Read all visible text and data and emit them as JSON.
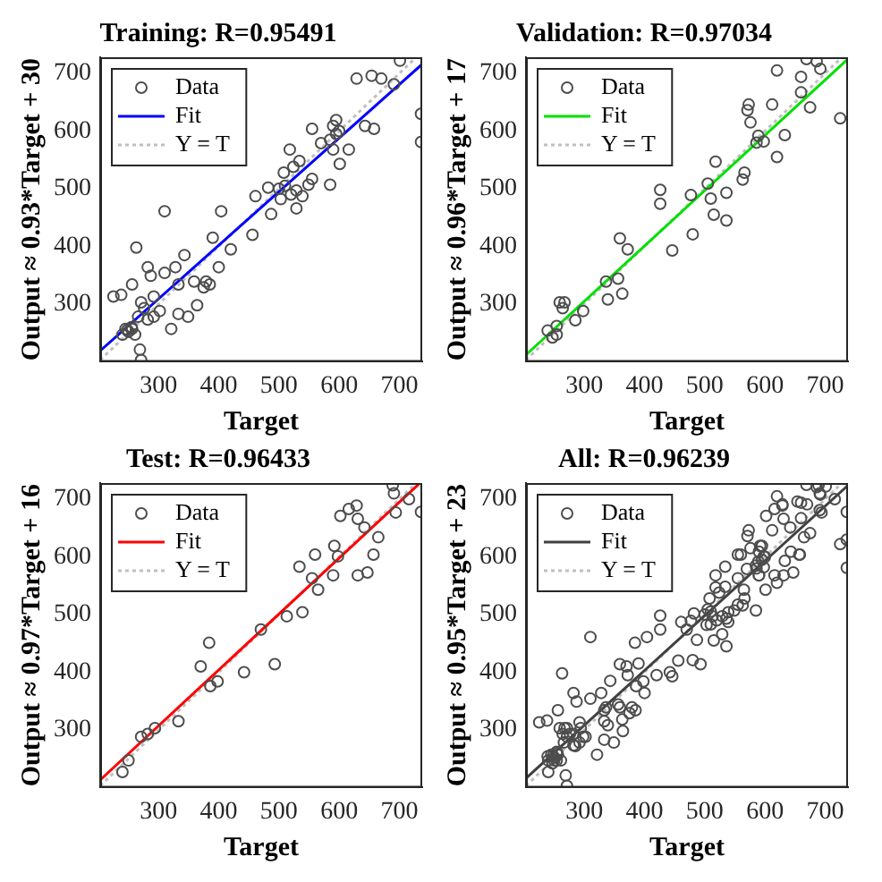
{
  "chart_data": [
    {
      "type": "scatter",
      "title": "Training: R=0.95491",
      "xlabel": "Target",
      "ylabel": "Output ≈ 0.93*Target + 30",
      "xlim": [
        203,
        738
      ],
      "ylim": [
        200,
        728
      ],
      "xticks": [
        300,
        400,
        500,
        600,
        700
      ],
      "yticks": [
        300,
        400,
        500,
        600,
        700
      ],
      "legend": "top left",
      "series": [
        {
          "name": "Data",
          "type": "scatter",
          "marker": "circle",
          "color": "#4d4d4d",
          "x": [
            225,
            238,
            256,
            263,
            245,
            250,
            256,
            261,
            269,
            271,
            271,
            276,
            282,
            287,
            292,
            302,
            310,
            310,
            321,
            328,
            333,
            343,
            349,
            359,
            364,
            379,
            385,
            390,
            400,
            404,
            420,
            456,
            461,
            487,
            482,
            503,
            508,
            518,
            524,
            529,
            534,
            529,
            539,
            555,
            555,
            570,
            585,
            590,
            595,
            590,
            601,
            616,
            629,
            643,
            658,
            654,
            670,
            691,
            701,
            736,
            736,
            240,
            266,
            282,
            292,
            333,
            375,
            549,
            500,
            510,
            520,
            595,
            600,
            585,
            255,
            248
          ],
          "values": [
            313,
            316,
            334,
            398,
            257,
            252,
            257,
            247,
            221,
            203,
            303,
            293,
            364,
            349,
            278,
            288,
            461,
            354,
            257,
            364,
            334,
            385,
            278,
            339,
            298,
            339,
            334,
            415,
            364,
            461,
            395,
            420,
            487,
            456,
            502,
            482,
            528,
            568,
            538,
            497,
            548,
            466,
            487,
            604,
            517,
            579,
            507,
            609,
            619,
            568,
            543,
            568,
            691,
            609,
            604,
            696,
            691,
            681,
            722,
            630,
            581,
            247,
            278,
            273,
            313,
            283,
            329,
            507,
            500,
            505,
            490,
            595,
            600,
            585,
            260,
            255
          ]
        },
        {
          "name": "Fit",
          "type": "line",
          "marker": "none",
          "color": "#0000ff",
          "x": [
            203,
            738
          ],
          "values": [
            219,
            716
          ]
        },
        {
          "name": "Y = T",
          "type": "line",
          "marker": "none",
          "line_style": "dotted",
          "color": "#bfbfbf",
          "x": [
            203,
            728
          ],
          "values": [
            203,
            728
          ]
        }
      ]
    },
    {
      "type": "scatter",
      "title": "Validation: R=0.97034",
      "xlabel": "Target",
      "ylabel": "Output ≈ 0.96*Target + 17",
      "xlim": [
        203,
        738
      ],
      "ylim": [
        200,
        728
      ],
      "xticks": [
        300,
        400,
        500,
        600,
        700
      ],
      "yticks": [
        300,
        400,
        500,
        600,
        700
      ],
      "legend": "top left",
      "series": [
        {
          "name": "Data",
          "type": "scatter",
          "marker": "circle",
          "color": "#4d4d4d",
          "x": [
            239,
            247,
            254,
            259,
            264,
            267,
            285,
            298,
            254,
            336,
            339,
            356,
            363,
            359,
            372,
            426,
            426,
            446,
            477,
            480,
            505,
            510,
            515,
            518,
            536,
            536,
            563,
            566,
            571,
            573,
            576,
            586,
            589,
            598,
            612,
            620,
            620,
            633,
            660,
            660,
            669,
            675,
            686,
            692,
            725
          ],
          "values": [
            254,
            242,
            262,
            303,
            293,
            303,
            272,
            288,
            247,
            339,
            308,
            344,
            318,
            414,
            395,
            498,
            474,
            393,
            489,
            421,
            509,
            483,
            455,
            547,
            493,
            445,
            516,
            528,
            636,
            646,
            615,
            580,
            592,
            582,
            646,
            555,
            705,
            593,
            694,
            667,
            725,
            641,
            721,
            708,
            622
          ]
        },
        {
          "name": "Fit",
          "type": "line",
          "marker": "none",
          "color": "#00e000",
          "x": [
            203,
            738
          ],
          "values": [
            212,
            725
          ]
        },
        {
          "name": "Y = T",
          "type": "line",
          "marker": "none",
          "line_style": "dotted",
          "color": "#bfbfbf",
          "x": [
            203,
            728
          ],
          "values": [
            203,
            728
          ]
        }
      ]
    },
    {
      "type": "scatter",
      "title": "Test: R=0.96433",
      "xlabel": "Target",
      "ylabel": "Output ≈ 0.97*Target + 16",
      "xlim": [
        203,
        738
      ],
      "ylim": [
        200,
        728
      ],
      "xticks": [
        300,
        400,
        500,
        600,
        700
      ],
      "yticks": [
        300,
        400,
        500,
        600,
        700
      ],
      "legend": "top left",
      "series": [
        {
          "name": "Data",
          "type": "scatter",
          "marker": "circle",
          "color": "#4d4d4d",
          "x": [
            240,
            250,
            271,
            282,
            294,
            333,
            370,
            384,
            386,
            398,
            442,
            470,
            493,
            513,
            539,
            534,
            555,
            560,
            565,
            590,
            592,
            598,
            602,
            616,
            629,
            631,
            631,
            642,
            647,
            657,
            665,
            689,
            691,
            694,
            716,
            736
          ],
          "values": [
            227,
            247,
            288,
            293,
            303,
            315,
            410,
            451,
            376,
            384,
            400,
            474,
            414,
            497,
            504,
            583,
            563,
            604,
            543,
            568,
            619,
            601,
            671,
            683,
            689,
            666,
            568,
            651,
            573,
            604,
            634,
            724,
            710,
            677,
            700,
            678
          ]
        },
        {
          "name": "Fit",
          "type": "line",
          "marker": "none",
          "color": "#ff0000",
          "x": [
            203,
            732
          ],
          "values": [
            213,
            726
          ]
        },
        {
          "name": "Y = T",
          "type": "line",
          "marker": "none",
          "line_style": "dotted",
          "color": "#bfbfbf",
          "x": [
            203,
            728
          ],
          "values": [
            203,
            728
          ]
        }
      ]
    },
    {
      "type": "scatter",
      "title": "All: R=0.96239",
      "xlabel": "Target",
      "ylabel": "Output ≈ 0.95*Target + 23",
      "xlim": [
        203,
        738
      ],
      "ylim": [
        200,
        728
      ],
      "xticks": [
        300,
        400,
        500,
        600,
        700
      ],
      "yticks": [
        300,
        400,
        500,
        600,
        700
      ],
      "legend": "top left",
      "series": [
        {
          "name": "Data",
          "type": "scatter",
          "marker": "circle",
          "color": "#4d4d4d",
          "x": [
            225,
            238,
            256,
            263,
            245,
            250,
            256,
            261,
            269,
            271,
            271,
            276,
            282,
            287,
            292,
            302,
            310,
            310,
            321,
            328,
            333,
            343,
            349,
            359,
            364,
            379,
            385,
            390,
            400,
            404,
            420,
            456,
            461,
            487,
            482,
            503,
            508,
            518,
            524,
            529,
            534,
            529,
            539,
            555,
            555,
            570,
            585,
            590,
            595,
            590,
            601,
            616,
            629,
            643,
            658,
            654,
            670,
            691,
            701,
            736,
            736,
            240,
            266,
            282,
            292,
            333,
            375,
            549,
            500,
            510,
            520,
            595,
            600,
            585,
            255,
            248,
            239,
            247,
            254,
            259,
            264,
            267,
            285,
            298,
            254,
            336,
            339,
            356,
            363,
            359,
            372,
            426,
            426,
            446,
            477,
            480,
            505,
            510,
            515,
            518,
            536,
            536,
            563,
            566,
            571,
            573,
            576,
            586,
            589,
            598,
            612,
            620,
            620,
            633,
            660,
            660,
            669,
            675,
            686,
            692,
            725,
            240,
            250,
            271,
            282,
            294,
            333,
            370,
            384,
            386,
            398,
            442,
            470,
            493,
            513,
            539,
            534,
            555,
            560,
            565,
            590,
            592,
            598,
            602,
            616,
            629,
            631,
            631,
            642,
            647,
            657,
            665,
            689,
            691,
            694,
            716,
            736
          ],
          "values": [
            313,
            316,
            334,
            398,
            257,
            252,
            257,
            247,
            221,
            203,
            303,
            293,
            364,
            349,
            278,
            288,
            461,
            354,
            257,
            364,
            334,
            385,
            278,
            339,
            298,
            339,
            334,
            415,
            364,
            461,
            395,
            420,
            487,
            456,
            502,
            482,
            528,
            568,
            538,
            497,
            548,
            466,
            487,
            604,
            517,
            579,
            507,
            609,
            619,
            568,
            543,
            568,
            691,
            609,
            604,
            696,
            691,
            681,
            722,
            630,
            581,
            247,
            278,
            273,
            313,
            283,
            329,
            507,
            500,
            505,
            490,
            595,
            600,
            585,
            260,
            255,
            254,
            242,
            262,
            303,
            293,
            303,
            272,
            288,
            247,
            339,
            308,
            344,
            318,
            414,
            395,
            498,
            474,
            393,
            489,
            421,
            509,
            483,
            455,
            547,
            493,
            445,
            516,
            528,
            636,
            646,
            615,
            580,
            592,
            582,
            646,
            555,
            705,
            593,
            694,
            667,
            725,
            641,
            721,
            708,
            622,
            227,
            247,
            288,
            293,
            303,
            315,
            410,
            451,
            376,
            384,
            400,
            474,
            414,
            497,
            504,
            583,
            563,
            604,
            543,
            568,
            619,
            601,
            671,
            683,
            689,
            666,
            568,
            651,
            573,
            604,
            634,
            724,
            710,
            677,
            700,
            678
          ]
        },
        {
          "name": "Fit",
          "type": "line",
          "marker": "none",
          "color": "#404040",
          "x": [
            203,
            738
          ],
          "values": [
            216,
            724
          ]
        },
        {
          "name": "Y = T",
          "type": "line",
          "marker": "none",
          "line_style": "dotted",
          "color": "#bfbfbf",
          "x": [
            203,
            728
          ],
          "values": [
            203,
            728
          ]
        }
      ]
    }
  ]
}
